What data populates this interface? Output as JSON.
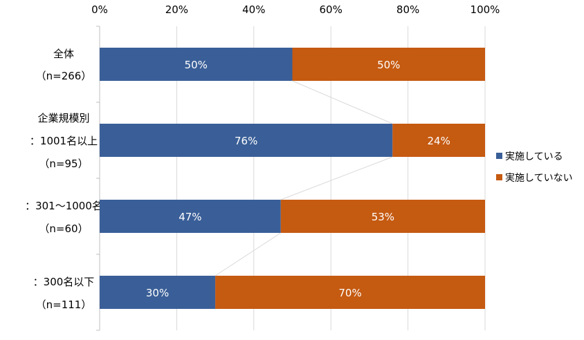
{
  "chart_data": {
    "type": "bar",
    "orientation": "horizontal",
    "stacked": "percent",
    "xlim": [
      0,
      100
    ],
    "x_ticks": [
      "0%",
      "20%",
      "40%",
      "60%",
      "80%",
      "100%"
    ],
    "categories": [
      {
        "lines": [
          "全体",
          "（n=266）"
        ]
      },
      {
        "lines": [
          "企業規模別",
          "：1001名以上",
          "（n=95）"
        ]
      },
      {
        "lines": [
          "：301～1000名",
          "（n=60）"
        ]
      },
      {
        "lines": [
          "：300名以下",
          "（n=111）"
        ]
      }
    ],
    "series": [
      {
        "name": "実施している",
        "color": "#3A5F98",
        "values": [
          50,
          76,
          47,
          30
        ],
        "labels": [
          "50%",
          "76%",
          "47%",
          "30%"
        ]
      },
      {
        "name": "実施していない",
        "color": "#C55A11",
        "values": [
          50,
          24,
          53,
          70
        ],
        "labels": [
          "50%",
          "24%",
          "53%",
          "70%"
        ]
      }
    ],
    "grid": "vertical",
    "series_lines": true,
    "legend_position": "right"
  }
}
